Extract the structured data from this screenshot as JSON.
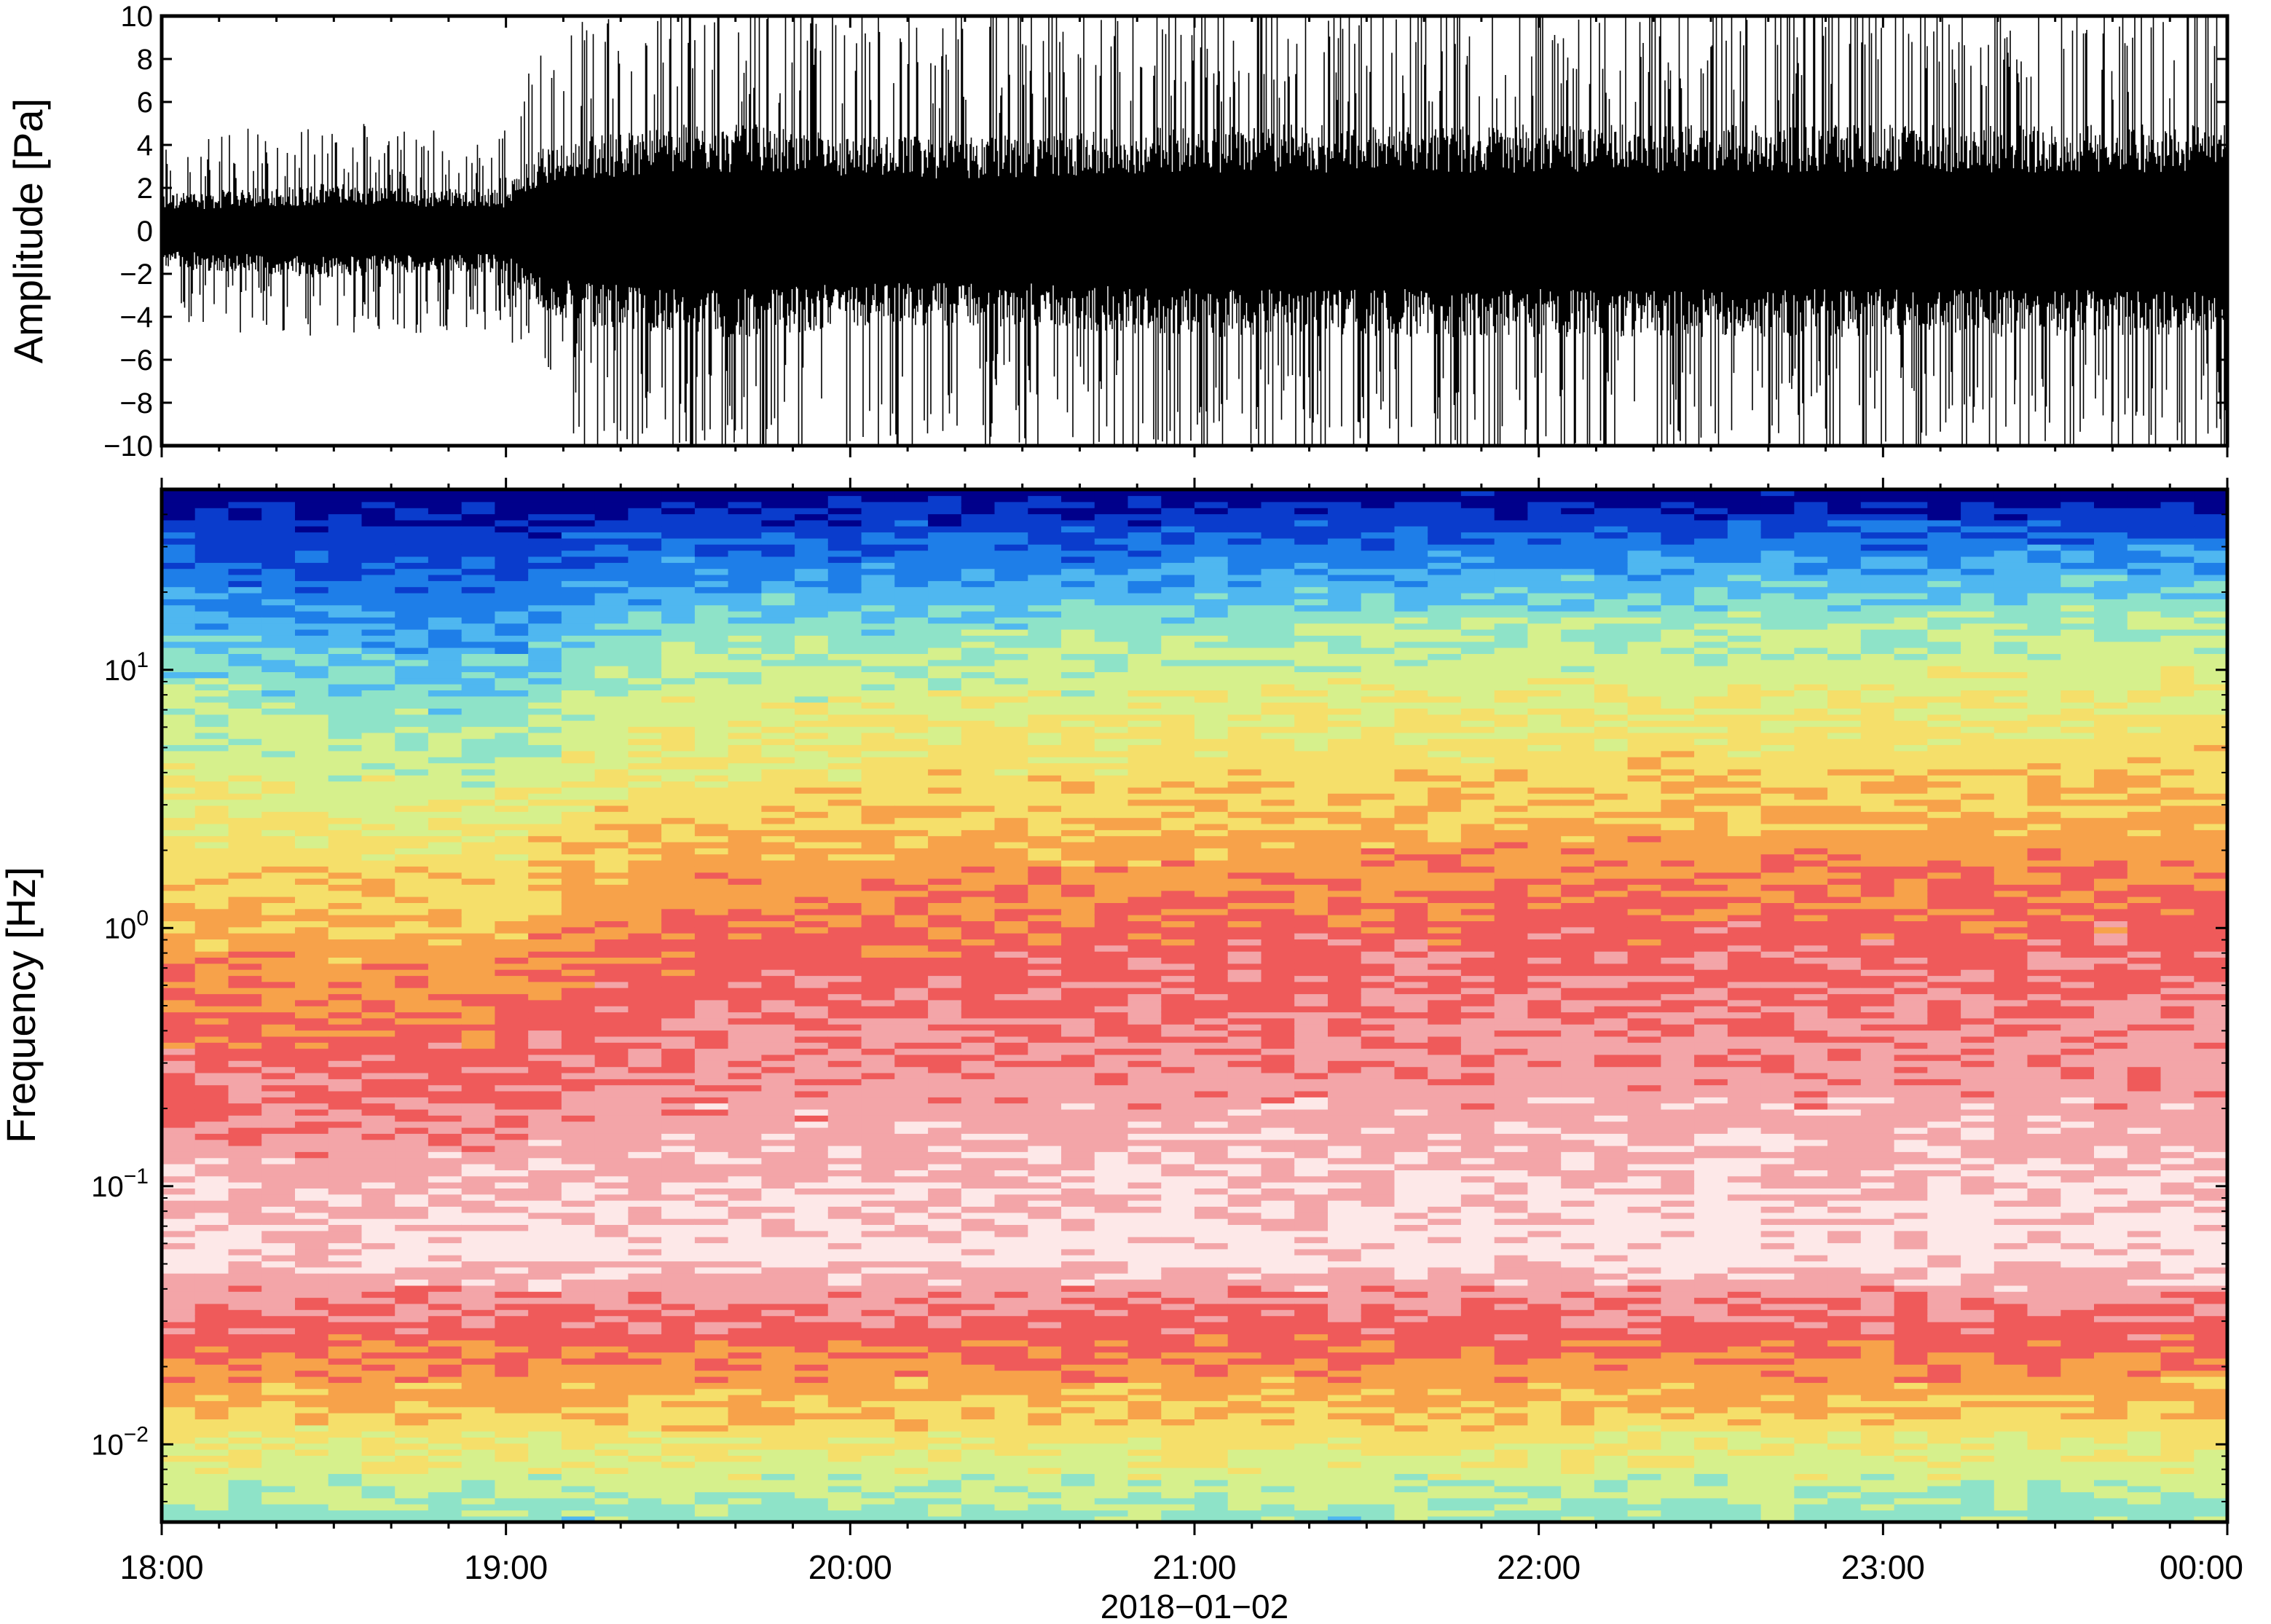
{
  "chart_data": [
    {
      "type": "line",
      "title": "",
      "ylabel": "Amplitude [Pa]",
      "ylim": [
        -10,
        10
      ],
      "yticks": [
        "10",
        "8",
        "6",
        "4",
        "2",
        "0",
        "−2",
        "−4",
        "−6",
        "−8",
        "−10"
      ],
      "ytick_values": [
        10,
        8,
        6,
        4,
        2,
        0,
        -2,
        -4,
        -6,
        -8,
        -10
      ],
      "x_range": [
        "18:00",
        "00:00"
      ],
      "series": [
        {
          "x_hours_description_free": [
            18.0,
            18.25,
            18.5,
            18.75,
            19.0,
            19.1,
            19.25,
            19.5,
            19.75,
            20.0,
            20.5,
            21.0,
            21.5,
            22.0,
            22.5,
            23.0,
            23.5,
            24.0
          ],
          "envelope_amplitude": [
            3.5,
            4,
            4.5,
            4,
            4,
            8,
            9,
            10,
            10,
            9,
            9,
            10,
            10,
            10,
            10,
            10,
            10,
            10
          ]
        }
      ],
      "color": "#000000"
    },
    {
      "type": "heatmap",
      "title": "",
      "ylabel": "Frequency [Hz]",
      "xlabel": "2018−01−02",
      "yscale": "log",
      "ylim": [
        0.005,
        50
      ],
      "yticks": [
        {
          "base": "10",
          "exp": "1",
          "value": 10
        },
        {
          "base": "10",
          "exp": "0",
          "value": 1
        },
        {
          "base": "10",
          "exp": "−1",
          "value": 0.1
        },
        {
          "base": "10",
          "exp": "−2",
          "value": 0.01
        }
      ],
      "xticks": [
        "18:00",
        "19:00",
        "20:00",
        "21:00",
        "22:00",
        "23:00",
        "00:00"
      ],
      "xtick_hours": [
        18,
        19,
        20,
        21,
        22,
        23,
        24
      ],
      "colormap": [
        "#00008b",
        "#0a3ccc",
        "#1e7ee8",
        "#4fb7f0",
        "#8ee3c8",
        "#d6f08c",
        "#f5df6a",
        "#f7a24a",
        "#ef5a5a",
        "#f3a5a8",
        "#fde8e8"
      ],
      "colormap_description_free": true,
      "columns_hours": [
        18.0,
        18.5,
        19.0,
        19.25,
        19.5,
        20.0,
        21.0,
        22.0,
        23.0,
        24.0
      ],
      "transition_freq_orange_red_hz": [
        0.35,
        0.35,
        0.33,
        0.55,
        0.7,
        0.75,
        0.85,
        1.0,
        1.0,
        1.0
      ],
      "transition_freq_green_orange_hz": [
        8,
        6,
        5,
        9,
        12,
        12,
        13,
        15,
        15,
        16
      ]
    }
  ]
}
